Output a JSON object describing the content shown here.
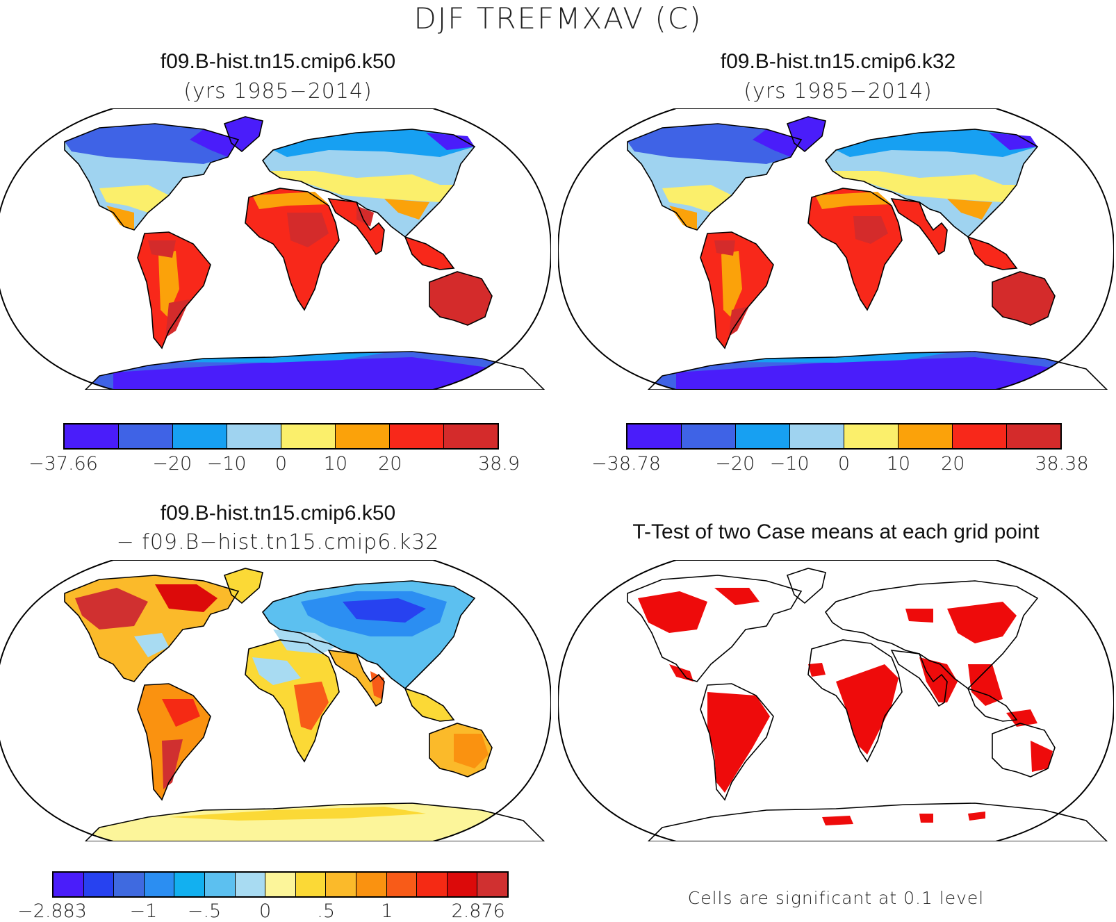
{
  "page_title": "DJF TREFMXAV (C)",
  "panels": {
    "top_left": {
      "title": "f09.B-hist.tn15.cmip6.k50",
      "subtitle": "(yrs 1985−2014)",
      "colorbar": {
        "colors": [
          "#4a1dfa",
          "#3f63e6",
          "#17a0f2",
          "#9fd3f0",
          "#fbef6b",
          "#fba20a",
          "#f8281a",
          "#d42b2b"
        ],
        "ticks": [
          {
            "label": "−37.66",
            "pos": 0
          },
          {
            "label": "−20",
            "pos": 2
          },
          {
            "label": "−10",
            "pos": 3
          },
          {
            "label": "0",
            "pos": 4
          },
          {
            "label": "10",
            "pos": 5
          },
          {
            "label": "20",
            "pos": 6
          },
          {
            "label": "38.9",
            "pos": 8
          }
        ]
      }
    },
    "top_right": {
      "title": "f09.B-hist.tn15.cmip6.k32",
      "subtitle": "(yrs 1985−2014)",
      "colorbar": {
        "colors": [
          "#4a1dfa",
          "#3f63e6",
          "#17a0f2",
          "#9fd3f0",
          "#fbef6b",
          "#fba20a",
          "#f8281a",
          "#d42b2b"
        ],
        "ticks": [
          {
            "label": "−38.78",
            "pos": 0
          },
          {
            "label": "−20",
            "pos": 2
          },
          {
            "label": "−10",
            "pos": 3
          },
          {
            "label": "0",
            "pos": 4
          },
          {
            "label": "10",
            "pos": 5
          },
          {
            "label": "20",
            "pos": 6
          },
          {
            "label": "38.38",
            "pos": 8
          }
        ]
      }
    },
    "bottom_left": {
      "title": "f09.B-hist.tn15.cmip6.k50",
      "subtitle": "− f09.B−hist.tn15.cmip6.k32",
      "colorbar": {
        "colors": [
          "#4a1dfa",
          "#2742f0",
          "#3f6ae0",
          "#2b8ef2",
          "#12b0f0",
          "#5cc0f0",
          "#a8dbf2",
          "#fcf59a",
          "#fbd936",
          "#fbba2a",
          "#fa9210",
          "#f85b18",
          "#f52a14",
          "#dc0a0a",
          "#d03030"
        ],
        "ticks": [
          {
            "label": "−2.883",
            "pos": 0
          },
          {
            "label": "−1",
            "pos": 3
          },
          {
            "label": "−.5",
            "pos": 5
          },
          {
            "label": "0",
            "pos": 7
          },
          {
            "label": ".5",
            "pos": 9
          },
          {
            "label": "1",
            "pos": 11
          },
          {
            "label": "2.876",
            "pos": 14
          }
        ]
      }
    },
    "bottom_right": {
      "title": "T-Test of two Case means at each grid point",
      "footnote": "Cells are significant at 0.1 level",
      "signif_color": "#ee0b0b"
    }
  }
}
